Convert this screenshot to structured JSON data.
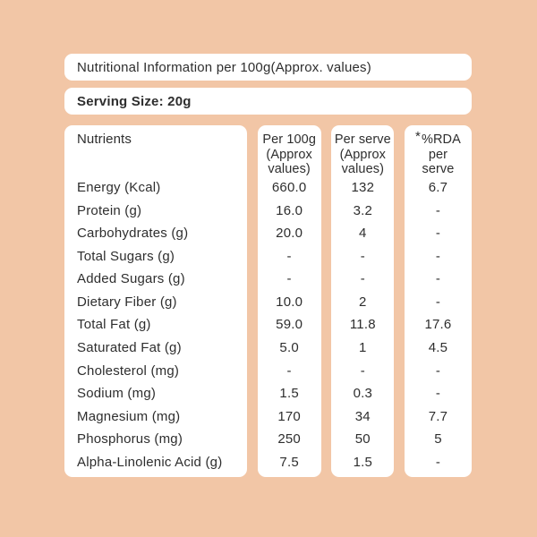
{
  "page": {
    "background_color": "#f2c6a6",
    "card_color": "#ffffff",
    "text_color": "#2e2e2e"
  },
  "header": {
    "title": "Nutritional Information per 100g(Approx. values)",
    "serving_size": "Serving Size: 20g"
  },
  "table": {
    "columns": [
      {
        "label": "Nutrients"
      },
      {
        "lines": [
          "Per 100g",
          "(Approx",
          "values)"
        ]
      },
      {
        "lines": [
          "Per serve",
          "(Approx",
          "values)"
        ]
      },
      {
        "asterisk": "*",
        "lines": [
          "%RDA",
          "per",
          "serve"
        ]
      }
    ],
    "rows": [
      {
        "nutrient": "Energy (Kcal)",
        "per_100g": "660.0",
        "per_serve": "132",
        "rda": "6.7"
      },
      {
        "nutrient": "Protein (g)",
        "per_100g": "16.0",
        "per_serve": "3.2",
        "rda": "-"
      },
      {
        "nutrient": "Carbohydrates (g)",
        "per_100g": "20.0",
        "per_serve": "4",
        "rda": "-"
      },
      {
        "nutrient": "Total Sugars (g)",
        "per_100g": "-",
        "per_serve": "-",
        "rda": "-"
      },
      {
        "nutrient": "Added Sugars (g)",
        "per_100g": "-",
        "per_serve": "-",
        "rda": "-"
      },
      {
        "nutrient": "Dietary Fiber (g)",
        "per_100g": "10.0",
        "per_serve": "2",
        "rda": "-"
      },
      {
        "nutrient": "Total Fat (g)",
        "per_100g": "59.0",
        "per_serve": "11.8",
        "rda": "17.6"
      },
      {
        "nutrient": "Saturated Fat (g)",
        "per_100g": "5.0",
        "per_serve": "1",
        "rda": "4.5"
      },
      {
        "nutrient": "Cholesterol (mg)",
        "per_100g": "-",
        "per_serve": "-",
        "rda": "-"
      },
      {
        "nutrient": "Sodium (mg)",
        "per_100g": "1.5",
        "per_serve": "0.3",
        "rda": "-"
      },
      {
        "nutrient": "Magnesium (mg)",
        "per_100g": "170",
        "per_serve": "34",
        "rda": "7.7"
      },
      {
        "nutrient": "Phosphorus (mg)",
        "per_100g": "250",
        "per_serve": "50",
        "rda": "5"
      },
      {
        "nutrient": "Alpha-Linolenic Acid (g)",
        "per_100g": "7.5",
        "per_serve": "1.5",
        "rda": "-"
      }
    ]
  }
}
